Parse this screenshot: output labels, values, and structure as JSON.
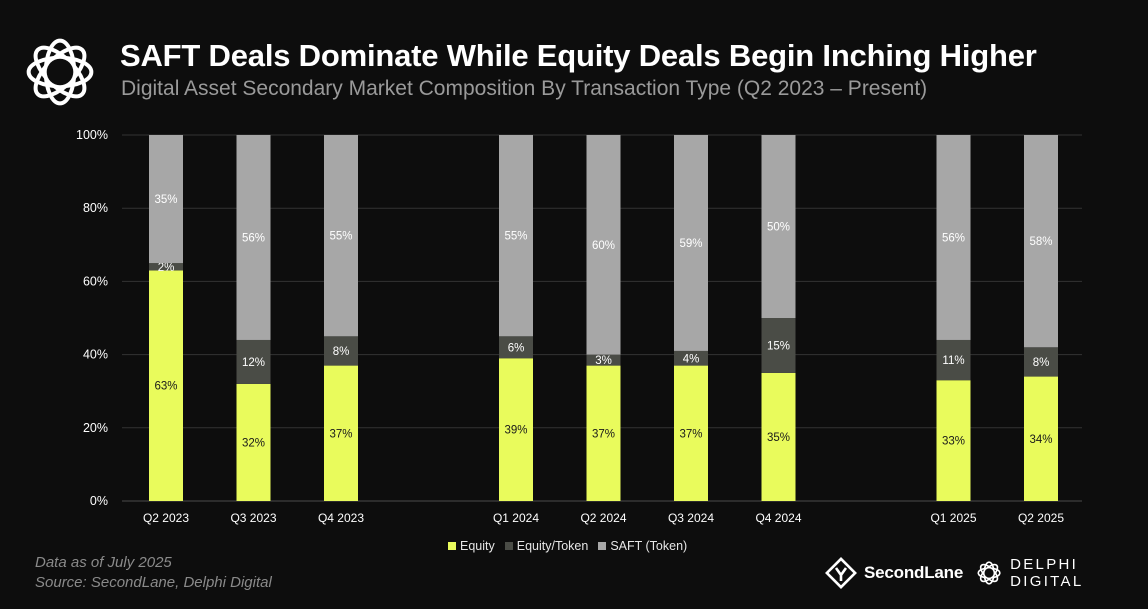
{
  "header": {
    "title": "SAFT Deals Dominate While Equity Deals Begin Inching Higher",
    "subtitle": "Digital Asset Secondary Market Composition By Transaction Type (Q2 2023 – Present)"
  },
  "footer": {
    "note": "Data as of July 2025",
    "source": "Source:  SecondLane,  Delphi  Digital",
    "brand_secondlane": "SecondLane",
    "brand_delphi": "DELPHI DIGITAL"
  },
  "colors": {
    "equity": "#e9fb5c",
    "equity_token": "#4a4c46",
    "saft": "#a7a7a7",
    "background": "#0d0d0d",
    "grid": "#333333"
  },
  "chart_data": {
    "type": "bar",
    "stacked": true,
    "categories": [
      "Q2 2023",
      "Q3 2023",
      "Q4 2023",
      "Q1 2024",
      "Q2 2024",
      "Q3 2024",
      "Q4 2024",
      "Q1 2025",
      "Q2 2025"
    ],
    "series": [
      {
        "name": "Equity",
        "values": [
          63,
          32,
          37,
          39,
          37,
          37,
          35,
          33,
          34
        ],
        "labels": [
          "63%",
          "32%",
          "37%",
          "39%",
          "37%",
          "37%",
          "35%",
          "33%",
          "34%"
        ]
      },
      {
        "name": "Equity/Token",
        "values": [
          2,
          12,
          8,
          6,
          3,
          4,
          15,
          11,
          8
        ],
        "labels": [
          "2%",
          "12%",
          "8%",
          "6%",
          "3%",
          "4%",
          "15%",
          "11%",
          "8%"
        ]
      },
      {
        "name": "SAFT (Token)",
        "values": [
          35,
          56,
          55,
          55,
          60,
          59,
          50,
          56,
          58
        ],
        "labels": [
          "35%",
          "56%",
          "55%",
          "55%",
          "60%",
          "59%",
          "50%",
          "56%",
          "58%"
        ]
      }
    ],
    "yticks": [
      "0%",
      "20%",
      "40%",
      "60%",
      "80%",
      "100%"
    ],
    "ylim": [
      0,
      100
    ],
    "grid": true,
    "legend": "bottom-center"
  }
}
